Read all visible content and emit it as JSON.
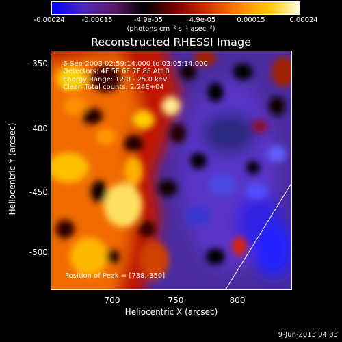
{
  "colorbar": {
    "tick_labels": [
      "-0.00024",
      "-0.00015",
      "-4.9e-05",
      "4.9e-05",
      "0.00015",
      "0.00024"
    ],
    "units": "(photons cm⁻² s⁻¹ asec⁻²)",
    "colors": [
      "#0000ff",
      "#4a2ab8",
      "#5a1a6a",
      "#000000",
      "#7a0000",
      "#d03000",
      "#ff8000",
      "#ffc800",
      "#ffffe0"
    ]
  },
  "image": {
    "title": "Reconstructed RHESSI Image",
    "annotations": [
      "6-Sep-2003 02:59:14.000 to 03:05:14.000",
      "Detectors: 4F 5F 6F 7F 8F   Att 0",
      "Energy Range: 12.0 - 25.0 keV",
      "Clean    Total counts: 2.24E+04"
    ],
    "peak_label": "Position of Peak = [738,-350]",
    "xlabel": "Heliocentric X (arcsec)",
    "ylabel": "Heliocentric Y (arcsec)",
    "x_ticks": [
      "700",
      "750",
      "800"
    ],
    "y_ticks": [
      "-350",
      "-400",
      "-450",
      "-500"
    ]
  },
  "footer": {
    "date": "9-Jun-2013 04:33"
  }
}
